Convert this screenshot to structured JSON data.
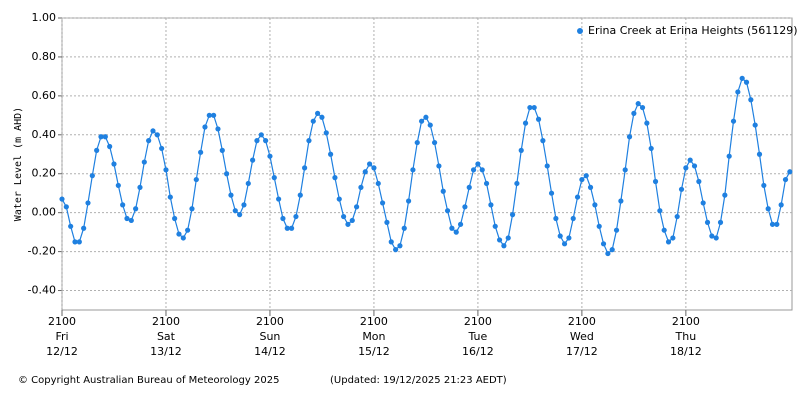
{
  "chart_data": {
    "type": "scatter-line",
    "y_label": "Water Level (m AHD)",
    "footer_left": "© Copyright Australian Bureau of Meteorology 2025",
    "footer_right": "(Updated: 19/12/2025 21:23 AEDT)",
    "legend_position": "top-right",
    "grid": true,
    "xlim": [
      0,
      168.5
    ],
    "ylim": [
      -0.5,
      1.0
    ],
    "yticks": [
      {
        "value": -0.4,
        "label": "-0.40"
      },
      {
        "value": -0.2,
        "label": "-0.20"
      },
      {
        "value": 0,
        "label": "0.00"
      },
      {
        "value": 0.2,
        "label": "0.20"
      },
      {
        "value": 0.4,
        "label": "0.40"
      },
      {
        "value": 0.6,
        "label": "0.60"
      },
      {
        "value": 0.8,
        "label": "0.80"
      },
      {
        "value": 1.0,
        "label": "1.00"
      }
    ],
    "xticks": [
      {
        "value": 0,
        "label": [
          "2100",
          "Fri",
          "12/12"
        ]
      },
      {
        "value": 24,
        "label": [
          "2100",
          "Sat",
          "13/12"
        ]
      },
      {
        "value": 48,
        "label": [
          "2100",
          "Sun",
          "14/12"
        ]
      },
      {
        "value": 72,
        "label": [
          "2100",
          "Mon",
          "15/12"
        ]
      },
      {
        "value": 96,
        "label": [
          "2100",
          "Tue",
          "16/12"
        ]
      },
      {
        "value": 120,
        "label": [
          "2100",
          "Wed",
          "17/12"
        ]
      },
      {
        "value": 144,
        "label": [
          "2100",
          "Thu",
          "18/12"
        ]
      }
    ],
    "x": [
      0,
      1,
      2,
      3,
      4,
      5,
      6,
      7,
      8,
      9,
      10,
      11,
      12,
      13,
      14,
      15,
      16,
      17,
      18,
      19,
      20,
      21,
      22,
      23,
      24,
      25,
      26,
      27,
      28,
      29,
      30,
      31,
      32,
      33,
      34,
      35,
      36,
      37,
      38,
      39,
      40,
      41,
      42,
      43,
      44,
      45,
      46,
      47,
      48,
      49,
      50,
      51,
      52,
      53,
      54,
      55,
      56,
      57,
      58,
      59,
      60,
      61,
      62,
      63,
      64,
      65,
      66,
      67,
      68,
      69,
      70,
      71,
      72,
      73,
      74,
      75,
      76,
      77,
      78,
      79,
      80,
      81,
      82,
      83,
      84,
      85,
      86,
      87,
      88,
      89,
      90,
      91,
      92,
      93,
      94,
      95,
      96,
      97,
      98,
      99,
      100,
      101,
      102,
      103,
      104,
      105,
      106,
      107,
      108,
      109,
      110,
      111,
      112,
      113,
      114,
      115,
      116,
      117,
      118,
      119,
      120,
      121,
      122,
      123,
      124,
      125,
      126,
      127,
      128,
      129,
      130,
      131,
      132,
      133,
      134,
      135,
      136,
      137,
      138,
      139,
      140,
      141,
      142,
      143,
      144,
      145,
      146,
      147,
      148,
      149,
      150,
      151,
      152,
      153,
      154,
      155,
      156,
      157,
      158,
      159,
      160,
      161,
      162,
      163,
      164,
      165,
      166,
      167,
      168
    ],
    "series": [
      {
        "name": "Erina Creek at Erina Heights (561129)",
        "color": "#1f80e0",
        "values": [
          0.07,
          0.03,
          -0.07,
          -0.15,
          -0.15,
          -0.08,
          0.05,
          0.19,
          0.32,
          0.39,
          0.39,
          0.34,
          0.25,
          0.14,
          0.04,
          -0.03,
          -0.04,
          0.02,
          0.13,
          0.26,
          0.37,
          0.42,
          0.4,
          0.33,
          0.22,
          0.08,
          -0.03,
          -0.11,
          -0.13,
          -0.09,
          0.02,
          0.17,
          0.31,
          0.44,
          0.5,
          0.5,
          0.43,
          0.32,
          0.2,
          0.09,
          0.01,
          -0.01,
          0.04,
          0.15,
          0.27,
          0.37,
          0.4,
          0.37,
          0.29,
          0.18,
          0.07,
          -0.03,
          -0.08,
          -0.08,
          -0.02,
          0.09,
          0.23,
          0.37,
          0.47,
          0.51,
          0.49,
          0.41,
          0.3,
          0.18,
          0.07,
          -0.02,
          -0.06,
          -0.04,
          0.03,
          0.13,
          0.21,
          0.25,
          0.23,
          0.15,
          0.05,
          -0.05,
          -0.15,
          -0.19,
          -0.17,
          -0.08,
          0.06,
          0.22,
          0.36,
          0.47,
          0.49,
          0.45,
          0.36,
          0.24,
          0.11,
          0.01,
          -0.08,
          -0.1,
          -0.06,
          0.03,
          0.13,
          0.22,
          0.25,
          0.22,
          0.15,
          0.04,
          -0.07,
          -0.14,
          -0.17,
          -0.13,
          -0.01,
          0.15,
          0.32,
          0.46,
          0.54,
          0.54,
          0.48,
          0.37,
          0.24,
          0.1,
          -0.03,
          -0.12,
          -0.16,
          -0.13,
          -0.03,
          0.08,
          0.17,
          0.19,
          0.13,
          0.04,
          -0.07,
          -0.16,
          -0.21,
          -0.19,
          -0.09,
          0.06,
          0.22,
          0.39,
          0.51,
          0.56,
          0.54,
          0.46,
          0.33,
          0.16,
          0.01,
          -0.09,
          -0.15,
          -0.13,
          -0.02,
          0.12,
          0.23,
          0.27,
          0.24,
          0.16,
          0.05,
          -0.05,
          -0.12,
          -0.13,
          -0.05,
          0.09,
          0.29,
          0.47,
          0.62,
          0.69,
          0.67,
          0.58,
          0.45,
          0.3,
          0.14,
          0.02,
          -0.06,
          -0.06,
          0.04,
          0.17,
          0.21
        ]
      }
    ]
  }
}
